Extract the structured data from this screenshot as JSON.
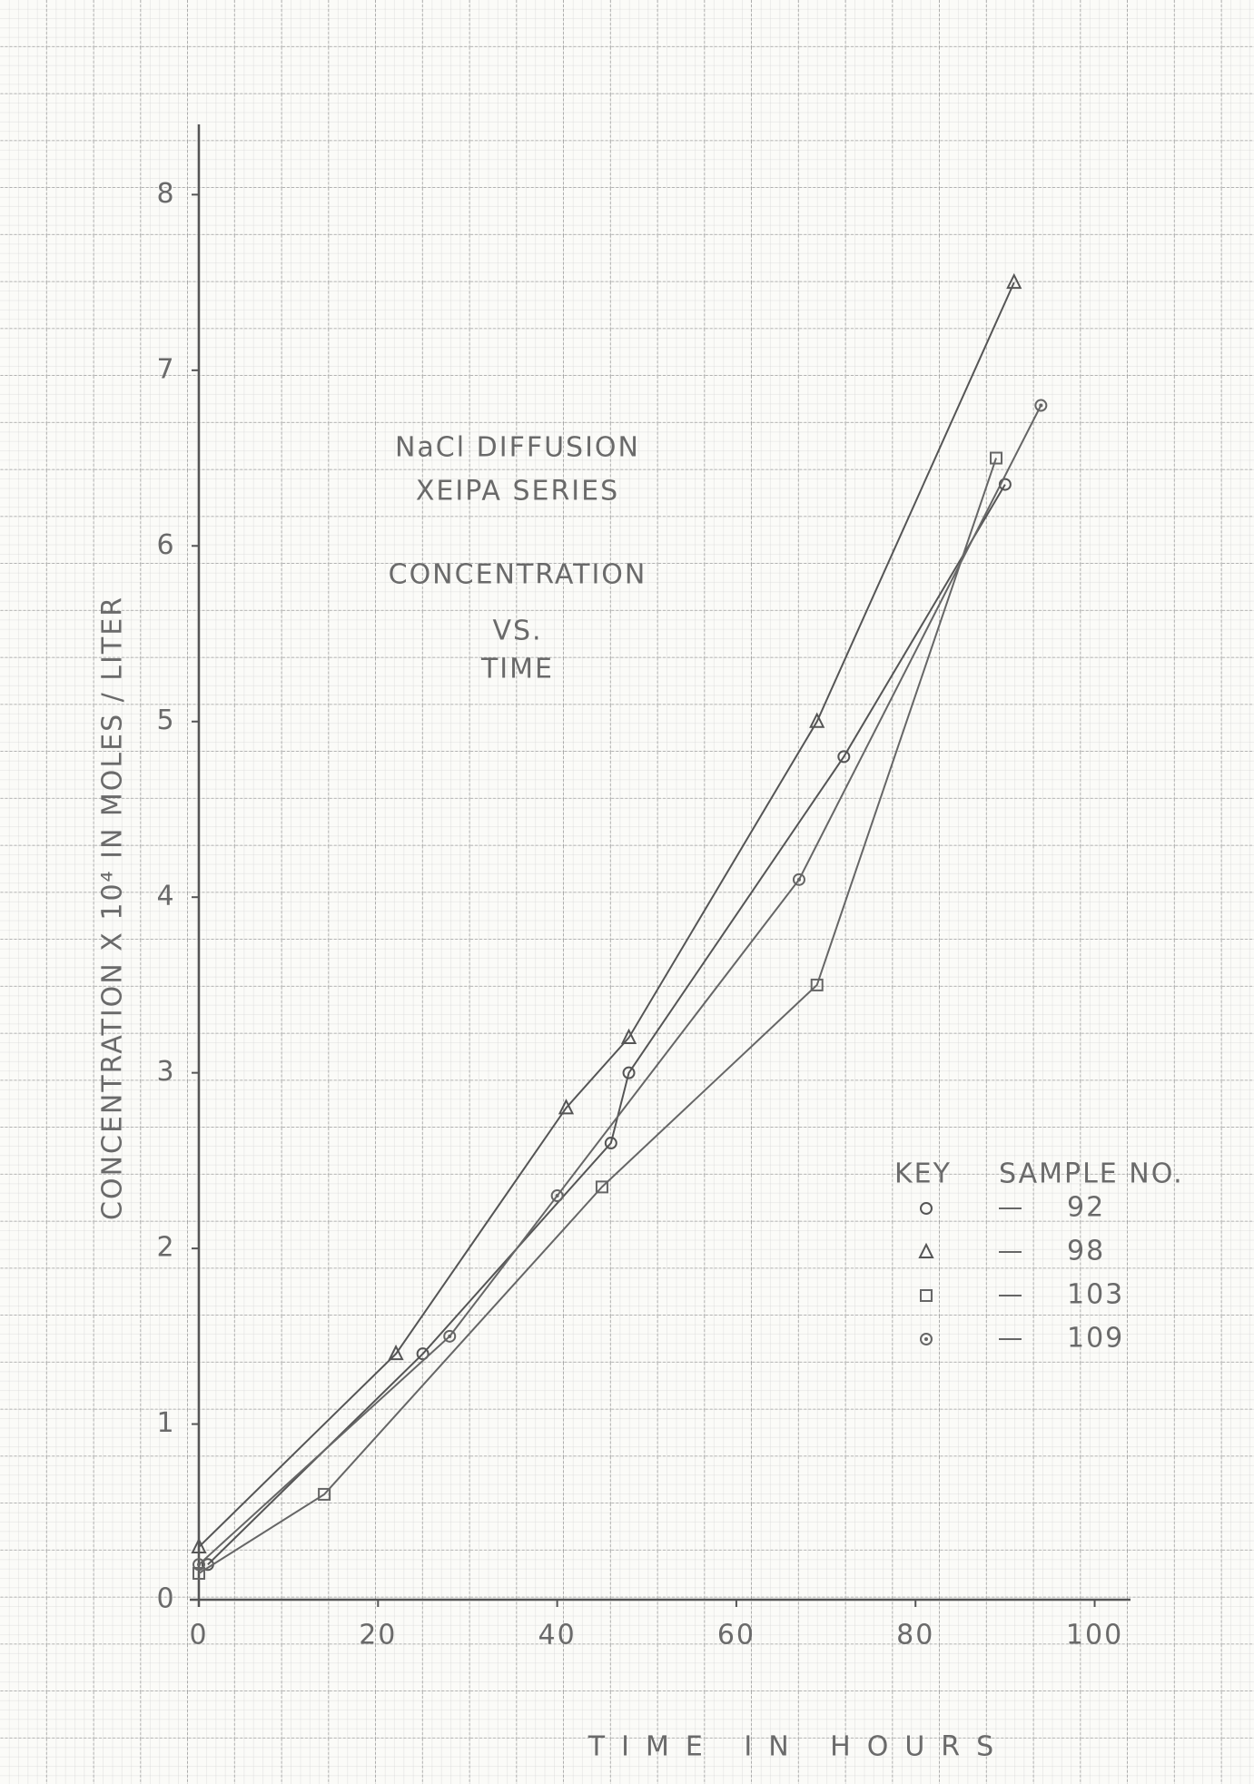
{
  "chart_data": {
    "type": "line",
    "title_lines": [
      "NaCl DIFFUSION",
      "XEIPA SERIES",
      "CONCENTRATION",
      "VS.",
      "TIME"
    ],
    "x_label": "TIME IN HOURS",
    "y_label": "CONCENTRATION X 10⁴ IN MOLES / LITER",
    "legend_title": [
      "KEY",
      "SAMPLE NO."
    ],
    "legend_position": "lower right",
    "grid": true,
    "xlim": [
      0,
      104
    ],
    "ylim": [
      0,
      8.4
    ],
    "xticks": [
      0,
      20,
      40,
      60,
      80,
      100
    ],
    "yticks": [
      0,
      1,
      2,
      3,
      4,
      5,
      6,
      7,
      8
    ],
    "series": [
      {
        "name": "92",
        "marker": "circle",
        "color": "#555555",
        "x": [
          1,
          25,
          46,
          48,
          72,
          90
        ],
        "values": [
          0.2,
          1.4,
          2.6,
          3.0,
          4.8,
          6.35
        ]
      },
      {
        "name": "98",
        "marker": "triangle",
        "color": "#555555",
        "x": [
          0,
          22,
          41,
          48,
          69,
          91
        ],
        "values": [
          0.3,
          1.4,
          2.8,
          3.2,
          5.0,
          7.5
        ]
      },
      {
        "name": "103",
        "marker": "square",
        "color": "#666666",
        "x": [
          0,
          14,
          45,
          69,
          89
        ],
        "values": [
          0.15,
          0.6,
          2.35,
          3.5,
          6.5
        ]
      },
      {
        "name": "109",
        "marker": "dotted-circle",
        "color": "#666666",
        "x": [
          0,
          28,
          40,
          67,
          94
        ],
        "values": [
          0.2,
          1.5,
          2.3,
          4.1,
          6.8
        ]
      }
    ]
  }
}
